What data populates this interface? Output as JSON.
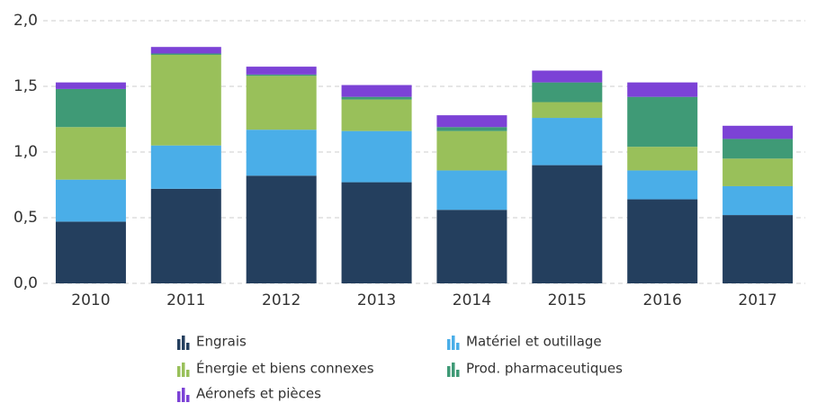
{
  "chart_data": {
    "type": "stacked_bar",
    "categories": [
      "2010",
      "2011",
      "2012",
      "2013",
      "2014",
      "2015",
      "2016",
      "2017"
    ],
    "series": [
      {
        "name": "Engrais",
        "color": "#243f5e",
        "values": [
          0.47,
          0.72,
          0.82,
          0.77,
          0.56,
          0.9,
          0.64,
          0.52
        ]
      },
      {
        "name": "Matériel et outillage",
        "color": "#4aaee8",
        "values": [
          0.32,
          0.33,
          0.35,
          0.39,
          0.3,
          0.36,
          0.22,
          0.22
        ]
      },
      {
        "name": "Énergie et biens connexes",
        "color": "#99c05a",
        "values": [
          0.4,
          0.69,
          0.41,
          0.24,
          0.3,
          0.12,
          0.18,
          0.21
        ]
      },
      {
        "name": "Prod. pharmaceutiques",
        "color": "#3f9a76",
        "values": [
          0.29,
          0.01,
          0.01,
          0.02,
          0.03,
          0.15,
          0.38,
          0.15
        ]
      },
      {
        "name": "Aéronefs et pièces",
        "color": "#7c42d6",
        "values": [
          0.05,
          0.05,
          0.06,
          0.09,
          0.09,
          0.09,
          0.11,
          0.1
        ]
      }
    ],
    "ylim": [
      0,
      2
    ],
    "yticks": [
      {
        "value": 0,
        "label": "0,0"
      },
      {
        "value": 0.5,
        "label": "0,5"
      },
      {
        "value": 1,
        "label": "1,0"
      },
      {
        "value": 1.5,
        "label": "1,5"
      },
      {
        "value": 2,
        "label": "2,0"
      }
    ],
    "grid": true
  }
}
